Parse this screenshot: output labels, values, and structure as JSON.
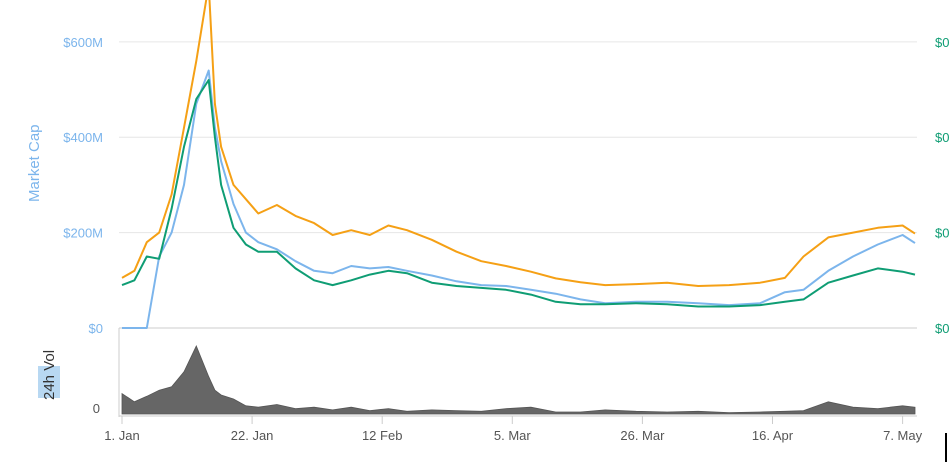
{
  "chart_data": {
    "type": "line",
    "title": "",
    "colors": {
      "market_cap": "#7cb5ec",
      "price_usd": "#f5a015",
      "price_btc": "#0f9d74",
      "volume": "#666666",
      "grid": "#e6e6e6"
    },
    "y_left": {
      "label": "Market Cap",
      "ticks": [
        "$0",
        "$200M",
        "$400M",
        "$600M"
      ],
      "range_millions": [
        0,
        650
      ]
    },
    "y_right": {
      "ticks": [
        "$0",
        "$0",
        "$0",
        "$0"
      ]
    },
    "x_axis": {
      "type": "date",
      "range": [
        "2018-01-01",
        "2018-05-09"
      ],
      "ticks": [
        {
          "date": "2018-01-01",
          "label": "1. Jan"
        },
        {
          "date": "2018-01-22",
          "label": "22. Jan"
        },
        {
          "date": "2018-02-12",
          "label": "12 Feb"
        },
        {
          "date": "2018-03-05",
          "label": "5. Mar"
        },
        {
          "date": "2018-03-26",
          "label": "26. Mar"
        },
        {
          "date": "2018-04-16",
          "label": "16. Apr"
        },
        {
          "date": "2018-05-07",
          "label": "7. May"
        }
      ]
    },
    "volume_axis": {
      "label": "24h Vol",
      "ticks": [
        "0"
      ]
    },
    "dates": [
      "2018-01-01",
      "2018-01-03",
      "2018-01-05",
      "2018-01-07",
      "2018-01-09",
      "2018-01-11",
      "2018-01-13",
      "2018-01-15",
      "2018-01-16",
      "2018-01-17",
      "2018-01-19",
      "2018-01-21",
      "2018-01-23",
      "2018-01-26",
      "2018-01-29",
      "2018-02-01",
      "2018-02-04",
      "2018-02-07",
      "2018-02-10",
      "2018-02-13",
      "2018-02-16",
      "2018-02-20",
      "2018-02-24",
      "2018-02-28",
      "2018-03-04",
      "2018-03-08",
      "2018-03-12",
      "2018-03-16",
      "2018-03-20",
      "2018-03-25",
      "2018-03-30",
      "2018-04-04",
      "2018-04-09",
      "2018-04-14",
      "2018-04-18",
      "2018-04-21",
      "2018-04-25",
      "2018-04-29",
      "2018-05-03",
      "2018-05-07",
      "2018-05-09"
    ],
    "series": [
      {
        "key": "market_cap",
        "axis": "left",
        "values": [
          0,
          0,
          0,
          150,
          200,
          300,
          470,
          540,
          420,
          350,
          260,
          200,
          180,
          165,
          140,
          120,
          115,
          130,
          125,
          128,
          120,
          110,
          98,
          90,
          88,
          80,
          72,
          60,
          52,
          55,
          55,
          52,
          48,
          52,
          75,
          80,
          120,
          150,
          175,
          195,
          178
        ]
      },
      {
        "key": "price_usd",
        "axis": "left",
        "values": [
          105,
          120,
          180,
          200,
          280,
          420,
          560,
          720,
          470,
          380,
          300,
          270,
          240,
          258,
          235,
          220,
          195,
          205,
          195,
          215,
          205,
          185,
          160,
          140,
          130,
          118,
          104,
          96,
          90,
          92,
          95,
          88,
          90,
          95,
          105,
          150,
          190,
          200,
          210,
          215,
          198
        ]
      },
      {
        "key": "price_btc",
        "axis": "left",
        "values": [
          90,
          100,
          150,
          145,
          250,
          380,
          480,
          520,
          400,
          300,
          210,
          175,
          160,
          160,
          125,
          100,
          90,
          100,
          112,
          120,
          115,
          95,
          88,
          84,
          80,
          70,
          55,
          50,
          50,
          52,
          50,
          45,
          45,
          48,
          55,
          60,
          95,
          110,
          125,
          118,
          112
        ]
      },
      {
        "key": "volume",
        "axis": "volume",
        "values": [
          0.3,
          0.18,
          0.26,
          0.35,
          0.4,
          0.62,
          1.0,
          0.55,
          0.35,
          0.28,
          0.22,
          0.12,
          0.1,
          0.14,
          0.08,
          0.1,
          0.06,
          0.1,
          0.05,
          0.08,
          0.04,
          0.06,
          0.05,
          0.04,
          0.08,
          0.1,
          0.03,
          0.03,
          0.06,
          0.04,
          0.03,
          0.04,
          0.02,
          0.03,
          0.04,
          0.05,
          0.18,
          0.1,
          0.08,
          0.12,
          0.1
        ]
      }
    ]
  }
}
